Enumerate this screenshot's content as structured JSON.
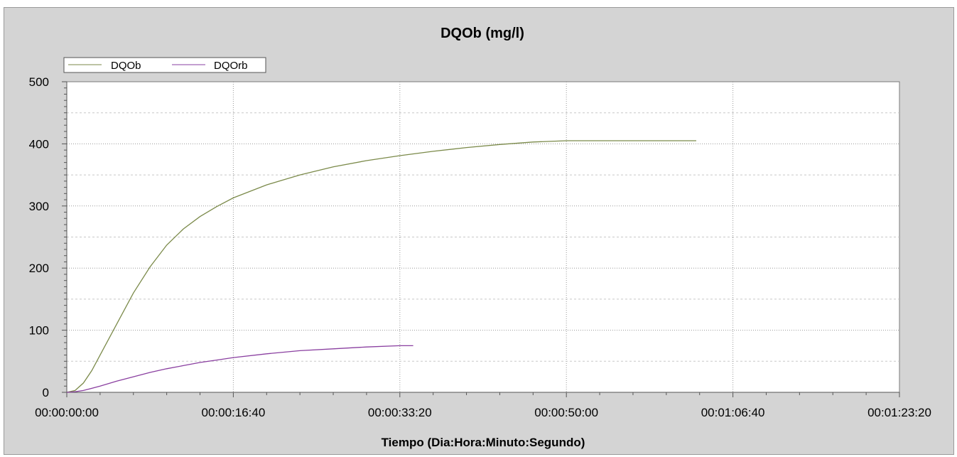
{
  "chart_data": {
    "type": "line",
    "title": "DQOb (mg/l)",
    "xlabel": "Tiempo (Dia:Hora:Minuto:Segundo)",
    "ylabel": "",
    "x_unit": "seconds",
    "xlim": [
      0,
      5000
    ],
    "ylim": [
      0,
      500
    ],
    "x_ticks": [
      0,
      1000,
      2000,
      3000,
      4000,
      5000
    ],
    "x_tick_labels": [
      "00:00:00:00",
      "00:00:16:40",
      "00:00:33:20",
      "00:00:50:00",
      "00:01:06:40",
      "00:01:23:20"
    ],
    "y_ticks": [
      0,
      100,
      200,
      300,
      400,
      500
    ],
    "y_tick_labels": [
      "0",
      "100",
      "200",
      "300",
      "400",
      "500"
    ],
    "grid": true,
    "legend_position": "top-left",
    "series": [
      {
        "name": "DQOb",
        "color": "#7b8a4a",
        "x": [
          0,
          50,
          100,
          150,
          200,
          300,
          400,
          500,
          600,
          700,
          800,
          900,
          1000,
          1200,
          1400,
          1600,
          1800,
          2000,
          2200,
          2400,
          2600,
          2800,
          3000,
          3200,
          3400,
          3600,
          3780
        ],
        "y": [
          0,
          3,
          15,
          35,
          60,
          110,
          160,
          202,
          237,
          263,
          283,
          299,
          313,
          334,
          350,
          363,
          373,
          381,
          388,
          394,
          399,
          403,
          405,
          405,
          405,
          405,
          405
        ]
      },
      {
        "name": "DQOrb",
        "color": "#8a3fa0",
        "x": [
          0,
          50,
          100,
          200,
          300,
          400,
          500,
          600,
          700,
          800,
          900,
          1000,
          1200,
          1400,
          1600,
          1800,
          2000,
          2080
        ],
        "y": [
          0,
          1,
          3,
          10,
          18,
          25,
          32,
          38,
          43,
          48,
          52,
          56,
          62,
          67,
          70,
          73,
          75,
          75
        ]
      }
    ]
  }
}
